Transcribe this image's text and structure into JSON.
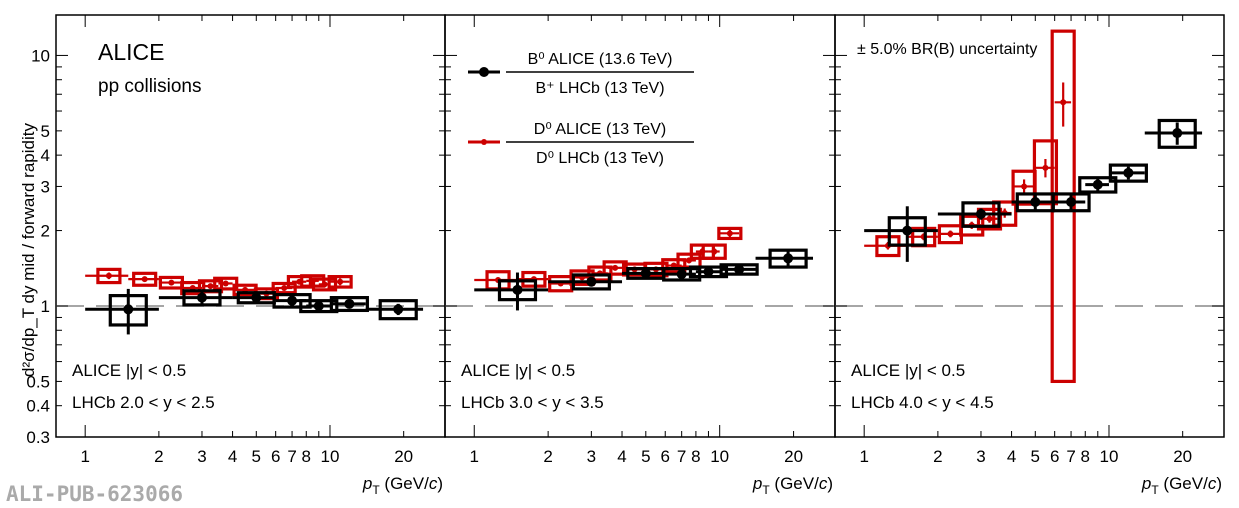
{
  "chart_data": {
    "type": "scatter",
    "ylabel": "d²σ/dp_T dy mid / forward rapidity",
    "xlabel": "p_T (GeV/c)",
    "yscale": "log",
    "xscale": "log",
    "ylim": [
      0.3,
      14.5
    ],
    "xlim": [
      0.76,
      29.5
    ],
    "yticks": [
      0.3,
      0.4,
      0.5,
      1,
      2,
      3,
      4,
      5,
      10
    ],
    "xticks": [
      1,
      2,
      3,
      4,
      5,
      6,
      7,
      8,
      10,
      20
    ],
    "reference_line": 1,
    "watermark": "ALI-PUB-623066",
    "legend": {
      "b_num": "B⁰ ALICE (13.6 TeV)",
      "b_den": "B⁺ LHCb (13 TeV)",
      "d_num": "D⁰ ALICE (13 TeV)",
      "d_den": "D⁰ LHCb (13 TeV)"
    },
    "colors": {
      "B": "#000000",
      "D": "#cc0000"
    },
    "panels": [
      {
        "title": "ALICE",
        "subtitle": "pp collisions",
        "cut1": "ALICE |y| < 0.5",
        "cut2": "LHCb 2.0 < y < 2.5",
        "B": {
          "x": [
            1.5,
            3,
            5,
            7,
            9,
            12,
            19
          ],
          "xerr": [
            0.5,
            1,
            1,
            1,
            1,
            2,
            5
          ],
          "y": [
            0.97,
            1.08,
            1.08,
            1.05,
            1.0,
            1.02,
            0.97
          ],
          "stat": [
            0.2,
            0.06,
            0.04,
            0.04,
            0.04,
            0.04,
            0.05
          ],
          "syst": [
            0.13,
            0.07,
            0.05,
            0.06,
            0.05,
            0.06,
            0.08
          ]
        },
        "D": {
          "x": [
            1.25,
            1.75,
            2.25,
            2.75,
            3.25,
            3.75,
            4.5,
            5.5,
            6.5,
            7.5,
            8.5,
            9.5,
            11
          ],
          "xerr": [
            0.25,
            0.25,
            0.25,
            0.25,
            0.25,
            0.25,
            0.5,
            0.5,
            0.5,
            0.5,
            0.5,
            0.5,
            1
          ],
          "y": [
            1.32,
            1.28,
            1.24,
            1.18,
            1.2,
            1.23,
            1.16,
            1.12,
            1.18,
            1.25,
            1.26,
            1.22,
            1.25
          ],
          "stat": [
            0.04,
            0.03,
            0.02,
            0.02,
            0.02,
            0.02,
            0.02,
            0.02,
            0.02,
            0.03,
            0.03,
            0.03,
            0.04
          ],
          "syst": [
            0.08,
            0.07,
            0.06,
            0.06,
            0.06,
            0.06,
            0.05,
            0.05,
            0.05,
            0.06,
            0.06,
            0.06,
            0.06
          ]
        }
      },
      {
        "cut1": "ALICE |y| < 0.5",
        "cut2": "LHCb 3.0 < y < 3.5",
        "B": {
          "x": [
            1.5,
            3,
            5,
            7,
            9,
            12,
            19
          ],
          "xerr": [
            0.5,
            1,
            1,
            1,
            1,
            2,
            5
          ],
          "y": [
            1.16,
            1.25,
            1.35,
            1.34,
            1.37,
            1.4,
            1.55
          ],
          "stat": [
            0.2,
            0.05,
            0.05,
            0.05,
            0.05,
            0.05,
            0.1
          ],
          "syst": [
            0.1,
            0.08,
            0.06,
            0.07,
            0.06,
            0.06,
            0.12
          ]
        },
        "D": {
          "x": [
            1.25,
            1.75,
            2.25,
            2.75,
            3.25,
            3.75,
            4.5,
            5.5,
            6.5,
            7.5,
            8.5,
            9.5,
            11
          ],
          "xerr": [
            0.25,
            0.25,
            0.25,
            0.25,
            0.25,
            0.25,
            0.5,
            0.5,
            0.5,
            0.5,
            0.5,
            0.5,
            1
          ],
          "y": [
            1.27,
            1.28,
            1.23,
            1.3,
            1.35,
            1.42,
            1.4,
            1.4,
            1.45,
            1.52,
            1.65,
            1.65,
            1.95
          ],
          "stat": [
            0.03,
            0.03,
            0.02,
            0.02,
            0.02,
            0.03,
            0.03,
            0.03,
            0.03,
            0.04,
            0.05,
            0.05,
            0.07
          ],
          "syst": [
            0.1,
            0.08,
            0.08,
            0.08,
            0.08,
            0.08,
            0.07,
            0.08,
            0.08,
            0.09,
            0.1,
            0.1,
            0.09
          ]
        }
      },
      {
        "note": "± 5.0% BR(B) uncertainty",
        "cut1": "ALICE |y| < 0.5",
        "cut2": "LHCb 4.0 < y < 4.5",
        "B": {
          "x": [
            1.5,
            3,
            5,
            7,
            9,
            12,
            19
          ],
          "xerr": [
            0.5,
            1,
            1,
            1,
            1,
            2,
            5
          ],
          "y": [
            2.0,
            2.33,
            2.6,
            2.6,
            3.05,
            3.4,
            4.9
          ],
          "stat": [
            0.5,
            0.12,
            0.2,
            0.2,
            0.2,
            0.2,
            0.5
          ],
          "syst": [
            0.25,
            0.25,
            0.2,
            0.2,
            0.2,
            0.25,
            0.6
          ]
        },
        "D": {
          "x": [
            1.25,
            1.75,
            2.25,
            2.75,
            3.25,
            3.75,
            4.5,
            5.5,
            6.5
          ],
          "xerr": [
            0.25,
            0.25,
            0.25,
            0.25,
            0.25,
            0.25,
            0.5,
            0.5,
            0.5
          ],
          "y": [
            1.74,
            1.89,
            1.94,
            2.1,
            2.23,
            2.35,
            3.0,
            3.56,
            6.5
          ],
          "stat": [
            0.06,
            0.06,
            0.06,
            0.07,
            0.08,
            0.1,
            0.2,
            0.3,
            1.3
          ],
          "syst": [
            0.15,
            0.15,
            0.15,
            0.18,
            0.2,
            0.25,
            0.45,
            1.0,
            6.0
          ]
        }
      }
    ]
  }
}
